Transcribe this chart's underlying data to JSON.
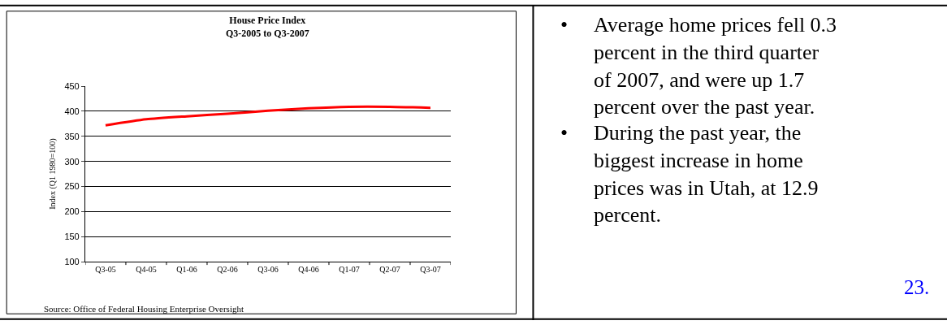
{
  "chart_data": {
    "type": "line",
    "title": "House Price Index",
    "subtitle": "Q3-2005 to Q3-2007",
    "ylabel": "Index (Q1 1980=100)",
    "categories": [
      "Q3-05",
      "Q4-05",
      "Q1-06",
      "Q2-06",
      "Q3-06",
      "Q4-06",
      "Q1-07",
      "Q2-07",
      "Q3-07"
    ],
    "series": [
      {
        "color": "#ff0000",
        "values": [
          372,
          384,
          390,
          395,
          401,
          406,
          409,
          409,
          407
        ]
      }
    ],
    "ylim": [
      100,
      450
    ],
    "yticks": [
      100,
      150,
      200,
      250,
      300,
      350,
      400,
      450
    ],
    "grid": "y",
    "marker": "none",
    "line_style": "solid",
    "annotations": [
      "Source: Office of Federal Housing Enterprise Oversight",
      "• Average home prices fell 0.3 percent in the third quarter of 2007, and were up 1.7 percent over the past year.",
      "• During the past year, the biggest increase in home prices was in Utah, at 12.9 percent.",
      "23."
    ]
  }
}
